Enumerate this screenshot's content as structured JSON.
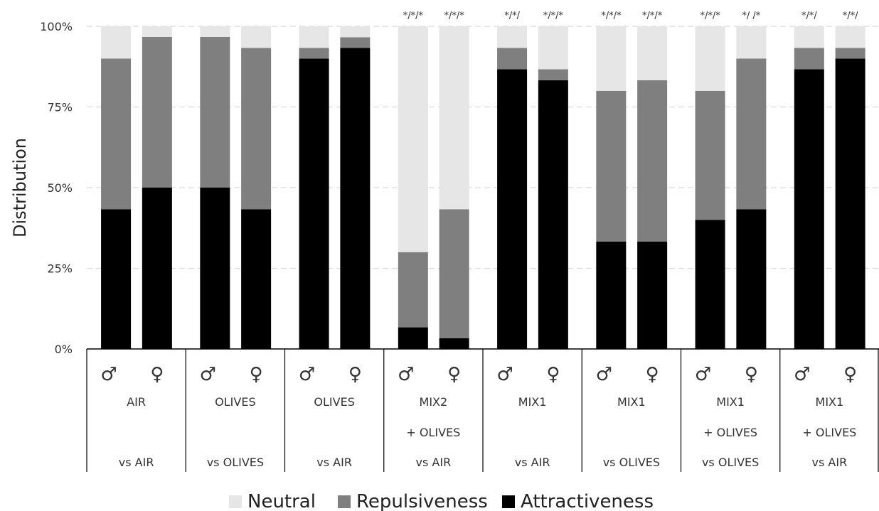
{
  "chart_data": {
    "type": "bar",
    "stacked": true,
    "ylabel": "Distribution",
    "ylim": [
      0,
      100
    ],
    "yticks": [
      "0%",
      "25%",
      "50%",
      "75%",
      "100%"
    ],
    "grid": true,
    "legend_position": "bottom",
    "series": [
      {
        "name": "Neutral",
        "color": "#e6e6e6"
      },
      {
        "name": "Repulsiveness",
        "color": "#7f7f7f"
      },
      {
        "name": "Attractiveness",
        "color": "#000000"
      }
    ],
    "groups": [
      {
        "line1": "AIR",
        "line2": "",
        "line3": "vs AIR",
        "bars": [
          {
            "sex": "♂",
            "attractiveness": 43.3,
            "repulsiveness": 46.7,
            "neutral": 10.0,
            "sig": ""
          },
          {
            "sex": "♀",
            "attractiveness": 50.0,
            "repulsiveness": 46.7,
            "neutral": 3.3,
            "sig": ""
          }
        ]
      },
      {
        "line1": "OLIVES",
        "line2": "",
        "line3": "vs OLIVES",
        "bars": [
          {
            "sex": "♂",
            "attractiveness": 50.0,
            "repulsiveness": 46.7,
            "neutral": 3.3,
            "sig": ""
          },
          {
            "sex": "♀",
            "attractiveness": 43.3,
            "repulsiveness": 50.0,
            "neutral": 6.7,
            "sig": ""
          }
        ]
      },
      {
        "line1": "OLIVES",
        "line2": "",
        "line3": "vs AIR",
        "bars": [
          {
            "sex": "♂",
            "attractiveness": 90.0,
            "repulsiveness": 3.3,
            "neutral": 6.7,
            "sig": ""
          },
          {
            "sex": "♀",
            "attractiveness": 93.3,
            "repulsiveness": 3.3,
            "neutral": 3.4,
            "sig": ""
          }
        ]
      },
      {
        "line1": "MIX2",
        "line2": "+ OLIVES",
        "line3": "vs AIR",
        "bars": [
          {
            "sex": "♂",
            "attractiveness": 6.7,
            "repulsiveness": 23.3,
            "neutral": 70.0,
            "sig": "*/*/*"
          },
          {
            "sex": "♀",
            "attractiveness": 3.3,
            "repulsiveness": 40.0,
            "neutral": 56.7,
            "sig": "*/*/*"
          }
        ]
      },
      {
        "line1": "MIX1",
        "line2": "",
        "line3": "vs AIR",
        "bars": [
          {
            "sex": "♂",
            "attractiveness": 86.7,
            "repulsiveness": 6.6,
            "neutral": 6.7,
            "sig": "*/*/"
          },
          {
            "sex": "♀",
            "attractiveness": 83.3,
            "repulsiveness": 3.4,
            "neutral": 13.3,
            "sig": "*/*/*"
          }
        ]
      },
      {
        "line1": "MIX1",
        "line2": "",
        "line3": "vs OLIVES",
        "bars": [
          {
            "sex": "♂",
            "attractiveness": 33.3,
            "repulsiveness": 46.7,
            "neutral": 20.0,
            "sig": "*/*/*"
          },
          {
            "sex": "♀",
            "attractiveness": 33.3,
            "repulsiveness": 50.0,
            "neutral": 16.7,
            "sig": "*/*/*"
          }
        ]
      },
      {
        "line1": "MIX1",
        "line2": "+ OLIVES",
        "line3": "vs OLIVES",
        "bars": [
          {
            "sex": "♂",
            "attractiveness": 40.0,
            "repulsiveness": 40.0,
            "neutral": 20.0,
            "sig": "*/*/*"
          },
          {
            "sex": "♀",
            "attractiveness": 43.3,
            "repulsiveness": 46.7,
            "neutral": 10.0,
            "sig": "*/ /*"
          }
        ]
      },
      {
        "line1": "MIX1",
        "line2": "+ OLIVES",
        "line3": "vs AIR",
        "bars": [
          {
            "sex": "♂",
            "attractiveness": 86.7,
            "repulsiveness": 6.6,
            "neutral": 6.7,
            "sig": "*/*/"
          },
          {
            "sex": "♀",
            "attractiveness": 90.0,
            "repulsiveness": 3.3,
            "neutral": 6.7,
            "sig": "*/*/"
          }
        ]
      }
    ]
  }
}
